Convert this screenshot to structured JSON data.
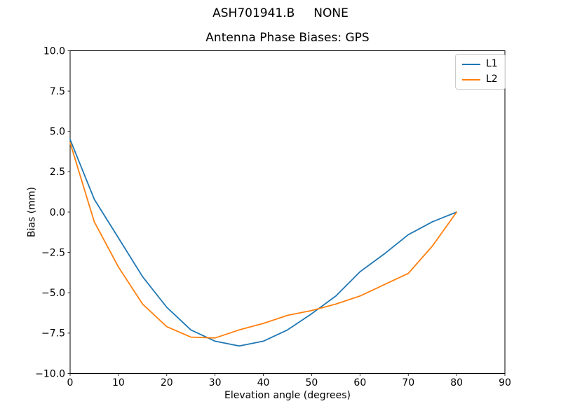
{
  "figure": {
    "suptitle": "ASH701941.B     NONE"
  },
  "chart_data": {
    "type": "line",
    "title": "Antenna Phase Biases: GPS",
    "suptitle": "ASH701941.B     NONE",
    "xlabel": "Elevation angle (degrees)",
    "ylabel": "Bias (mm)",
    "xlim": [
      0,
      90
    ],
    "ylim": [
      -10,
      10
    ],
    "grid": false,
    "legend_position": "upper right",
    "xticks": [
      0,
      10,
      20,
      30,
      40,
      50,
      60,
      70,
      80,
      90
    ],
    "xtick_labels": [
      "0",
      "10",
      "20",
      "30",
      "40",
      "50",
      "60",
      "70",
      "80",
      "90"
    ],
    "yticks": [
      -10,
      -7.5,
      -5,
      -2.5,
      0,
      2.5,
      5,
      7.5,
      10
    ],
    "ytick_labels": [
      "−10.0",
      "−7.5",
      "−5.0",
      "−2.5",
      "0.0",
      "2.5",
      "5.0",
      "7.5",
      "10.0"
    ],
    "x": [
      0,
      5,
      10,
      15,
      20,
      25,
      30,
      35,
      40,
      45,
      50,
      55,
      60,
      65,
      70,
      75,
      80
    ],
    "series": [
      {
        "name": "L1",
        "color": "#1f77b4",
        "values": [
          4.5,
          0.8,
          -1.6,
          -4.0,
          -5.9,
          -7.3,
          -8.0,
          -8.3,
          -8.0,
          -7.3,
          -6.3,
          -5.2,
          -3.7,
          -2.6,
          -1.4,
          -0.6,
          0.0
        ]
      },
      {
        "name": "L2",
        "color": "#ff7f0e",
        "values": [
          4.3,
          -0.6,
          -3.4,
          -5.7,
          -7.1,
          -7.75,
          -7.8,
          -7.3,
          -6.9,
          -6.4,
          -6.1,
          -5.7,
          -5.2,
          -4.5,
          -3.8,
          -2.1,
          0.0
        ]
      }
    ]
  }
}
